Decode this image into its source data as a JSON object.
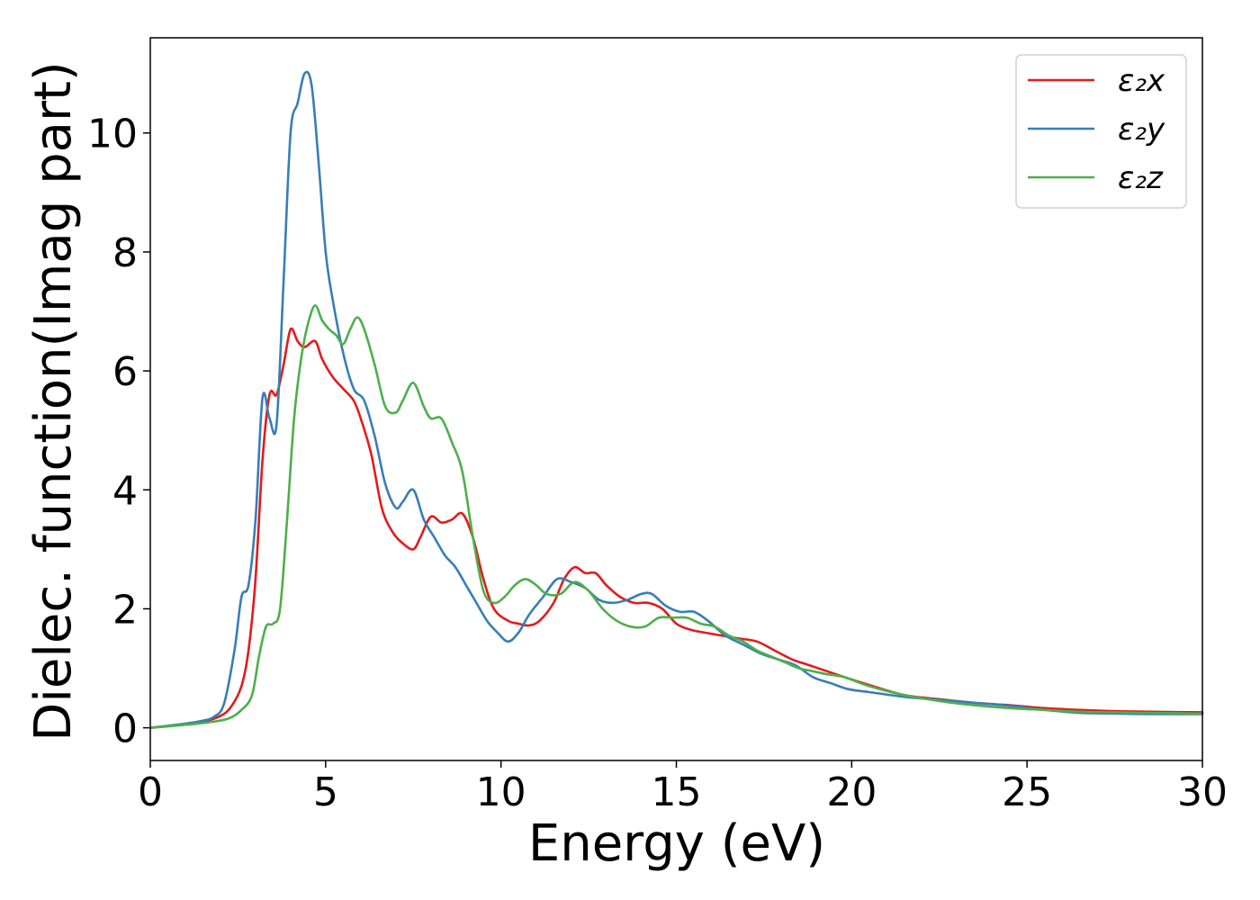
{
  "chart_data": {
    "type": "line",
    "xlabel": "Energy (eV)",
    "ylabel": "Dielec. function(Imag part)",
    "xlim": [
      0,
      30
    ],
    "ylim": [
      -0.55,
      11.6
    ],
    "xticks": [
      0,
      5,
      10,
      15,
      20,
      25,
      30
    ],
    "yticks": [
      0,
      2,
      4,
      6,
      8,
      10
    ],
    "legend_position": "top-right",
    "grid": false,
    "series": [
      {
        "name": "ε₂x",
        "color": "#e31a1c",
        "x": [
          0,
          1,
          1.5,
          2,
          2.3,
          2.6,
          2.8,
          3.0,
          3.2,
          3.4,
          3.6,
          3.8,
          4.0,
          4.2,
          4.4,
          4.7,
          4.9,
          5.2,
          5.5,
          5.8,
          6.0,
          6.3,
          6.6,
          6.9,
          7.2,
          7.5,
          7.7,
          8.0,
          8.3,
          8.6,
          8.9,
          9.2,
          9.5,
          9.8,
          10.2,
          10.5,
          10.8,
          11.1,
          11.5,
          11.8,
          12.1,
          12.4,
          12.7,
          13.0,
          13.4,
          13.8,
          14.2,
          14.6,
          15.0,
          15.4,
          15.8,
          16.3,
          16.8,
          17.3,
          17.8,
          18.3,
          18.8,
          19.3,
          19.8,
          20.5,
          21.5,
          22.5,
          23.5,
          24.5,
          25.5,
          26.5,
          27.5,
          28.5,
          30
        ],
        "y": [
          0,
          0.06,
          0.1,
          0.2,
          0.35,
          0.7,
          1.3,
          2.5,
          4.5,
          5.6,
          5.6,
          6.1,
          6.7,
          6.5,
          6.4,
          6.5,
          6.2,
          5.9,
          5.7,
          5.5,
          5.2,
          4.6,
          3.7,
          3.3,
          3.1,
          3.0,
          3.2,
          3.55,
          3.45,
          3.5,
          3.6,
          3.2,
          2.5,
          2.0,
          1.8,
          1.75,
          1.72,
          1.8,
          2.1,
          2.5,
          2.7,
          2.6,
          2.6,
          2.4,
          2.2,
          2.1,
          2.1,
          2.0,
          1.75,
          1.65,
          1.6,
          1.55,
          1.5,
          1.45,
          1.3,
          1.15,
          1.05,
          0.95,
          0.85,
          0.72,
          0.55,
          0.48,
          0.42,
          0.38,
          0.33,
          0.3,
          0.28,
          0.27,
          0.26
        ]
      },
      {
        "name": "ε₂y",
        "color": "#377eb8",
        "x": [
          0,
          1,
          1.5,
          1.8,
          2.1,
          2.4,
          2.6,
          2.8,
          3.0,
          3.2,
          3.4,
          3.6,
          3.8,
          4.0,
          4.2,
          4.4,
          4.6,
          4.8,
          5.0,
          5.2,
          5.5,
          5.8,
          6.1,
          6.4,
          6.7,
          7.0,
          7.2,
          7.5,
          7.8,
          8.1,
          8.4,
          8.7,
          9.0,
          9.3,
          9.6,
          9.9,
          10.2,
          10.5,
          10.8,
          11.2,
          11.6,
          12.0,
          12.4,
          12.8,
          13.2,
          13.6,
          14.0,
          14.3,
          14.7,
          15.1,
          15.5,
          15.9,
          16.4,
          16.9,
          17.4,
          17.9,
          18.4,
          18.9,
          19.4,
          19.9,
          20.5,
          21.5,
          22.5,
          23.5,
          24.5,
          25.5,
          26.5,
          27.5,
          28.5,
          30
        ],
        "y": [
          0,
          0.07,
          0.12,
          0.18,
          0.4,
          1.3,
          2.2,
          2.4,
          3.5,
          5.55,
          5.2,
          5.1,
          7.5,
          10.0,
          10.5,
          11.0,
          10.8,
          9.5,
          8.0,
          7.2,
          6.3,
          5.7,
          5.5,
          4.9,
          4.1,
          3.7,
          3.8,
          4.0,
          3.5,
          3.2,
          2.9,
          2.7,
          2.4,
          2.1,
          1.8,
          1.6,
          1.45,
          1.6,
          1.9,
          2.2,
          2.5,
          2.45,
          2.35,
          2.15,
          2.1,
          2.15,
          2.25,
          2.25,
          2.05,
          1.95,
          1.95,
          1.8,
          1.55,
          1.4,
          1.25,
          1.15,
          1.05,
          0.85,
          0.75,
          0.65,
          0.6,
          0.52,
          0.47,
          0.42,
          0.37,
          0.3,
          0.25,
          0.24,
          0.23,
          0.23
        ]
      },
      {
        "name": "ε₂z",
        "color": "#4daf4a",
        "x": [
          0,
          1,
          1.5,
          2.2,
          2.6,
          2.9,
          3.1,
          3.3,
          3.5,
          3.7,
          3.9,
          4.1,
          4.3,
          4.5,
          4.7,
          4.9,
          5.1,
          5.3,
          5.5,
          5.7,
          5.9,
          6.1,
          6.4,
          6.7,
          7.0,
          7.2,
          7.5,
          7.8,
          8.0,
          8.3,
          8.6,
          8.9,
          9.2,
          9.5,
          9.8,
          10.1,
          10.4,
          10.7,
          11.0,
          11.3,
          11.7,
          12.1,
          12.5,
          12.9,
          13.3,
          13.7,
          14.1,
          14.5,
          14.9,
          15.3,
          15.7,
          16.1,
          16.5,
          16.9,
          17.3,
          17.7,
          18.1,
          18.5,
          18.9,
          19.3,
          19.8,
          20.5,
          21.5,
          22.5,
          23.5,
          24.5,
          25.5,
          26.5,
          27.5,
          28.5,
          30
        ],
        "y": [
          0,
          0.05,
          0.08,
          0.15,
          0.3,
          0.55,
          1.2,
          1.7,
          1.75,
          2.0,
          3.5,
          5.2,
          6.2,
          6.8,
          7.1,
          6.85,
          6.7,
          6.6,
          6.45,
          6.7,
          6.9,
          6.7,
          6.1,
          5.4,
          5.3,
          5.5,
          5.8,
          5.4,
          5.2,
          5.2,
          4.8,
          4.3,
          3.2,
          2.3,
          2.1,
          2.2,
          2.4,
          2.5,
          2.4,
          2.25,
          2.25,
          2.45,
          2.3,
          2.0,
          1.8,
          1.7,
          1.7,
          1.85,
          1.85,
          1.85,
          1.75,
          1.7,
          1.55,
          1.45,
          1.3,
          1.2,
          1.1,
          1.0,
          0.95,
          0.9,
          0.85,
          0.7,
          0.55,
          0.45,
          0.38,
          0.33,
          0.3,
          0.27,
          0.26,
          0.25,
          0.24
        ]
      }
    ]
  }
}
